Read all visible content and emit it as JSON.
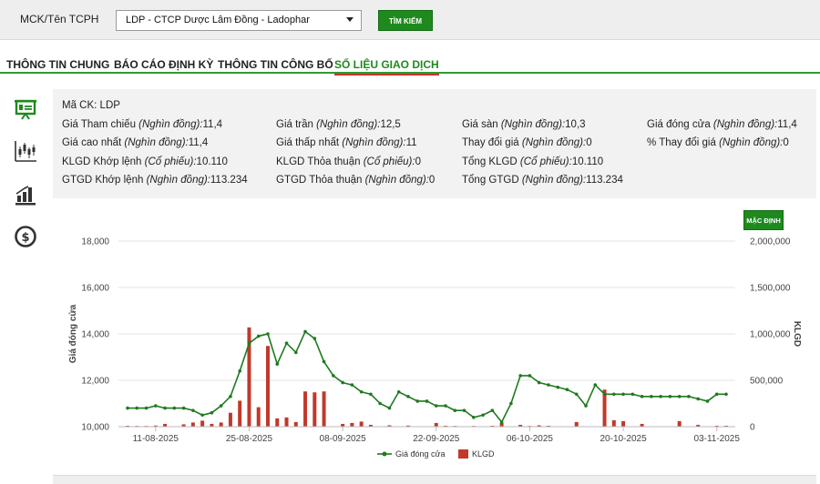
{
  "header": {
    "mck_label": "MCK/Tên TCPH",
    "select_value": "LDP - CTCP Dược Lâm Đồng - Ladophar",
    "search_button": "TÌM KIẾM"
  },
  "tabs": [
    {
      "label": "THÔNG TIN CHUNG",
      "active": false
    },
    {
      "label": "BÁO CÁO ĐỊNH KỲ",
      "active": false
    },
    {
      "label": "THÔNG TIN CÔNG BỐ",
      "active": false
    },
    {
      "label": "SỐ LIỆU GIAO DỊCH",
      "active": true
    }
  ],
  "sidebar": {
    "icons": [
      "presentation-icon",
      "candlestick-icon",
      "bar-chart-icon",
      "dollar-icon"
    ]
  },
  "info": {
    "ma_ck_label": "Mã CK:",
    "ma_ck_value": "LDP",
    "rows": [
      [
        {
          "label": "Giá Tham chiếu",
          "unit": "(Nghìn đồng):",
          "value": "11,4"
        },
        {
          "label": "Giá trần",
          "unit": "(Nghìn đồng):",
          "value": "12,5"
        },
        {
          "label": "Giá sàn",
          "unit": "(Nghìn đồng):",
          "value": "10,3"
        },
        {
          "label": "Giá đóng cửa",
          "unit": "(Nghìn đồng):",
          "value": "11,4"
        }
      ],
      [
        {
          "label": "Giá cao nhất",
          "unit": "(Nghìn đồng):",
          "value": "11,4"
        },
        {
          "label": "Giá thấp nhất",
          "unit": "(Nghìn đồng):",
          "value": "11"
        },
        {
          "label": "Thay đổi giá",
          "unit": "(Nghìn đồng):",
          "value": "0"
        },
        {
          "label": "% Thay đổi giá",
          "unit": "(Nghìn đồng):",
          "value": "0"
        }
      ],
      [
        {
          "label": "KLGD Khớp lệnh",
          "unit": "(Cổ phiếu):",
          "value": "10.110"
        },
        {
          "label": "KLGD Thỏa thuận",
          "unit": "(Cổ phiếu):",
          "value": "0"
        },
        {
          "label": "Tổng KLGD",
          "unit": "(Cổ phiếu):",
          "value": "10.110"
        },
        null
      ],
      [
        {
          "label": "GTGD Khớp lệnh",
          "unit": "(Nghìn đồng):",
          "value": "113.234"
        },
        {
          "label": "GTGD Thỏa thuận",
          "unit": "(Nghìn đồng):",
          "value": "0"
        },
        {
          "label": "Tổng GTGD",
          "unit": "(Nghìn đồng):",
          "value": "113.234"
        },
        null
      ]
    ]
  },
  "chart_controls": {
    "default_button": "MẶC ĐỊNH"
  },
  "colors": {
    "accent": "#1e8a1e",
    "price_line": "#1f7a1f",
    "volume_bar": "#c0392b"
  },
  "chart_data": {
    "type": "bar+line",
    "x": [
      "06-08-2025",
      "07-08-2025",
      "08-08-2025",
      "11-08-2025",
      "12-08-2025",
      "13-08-2025",
      "14-08-2025",
      "15-08-2025",
      "18-08-2025",
      "19-08-2025",
      "20-08-2025",
      "21-08-2025",
      "22-08-2025",
      "25-08-2025",
      "26-08-2025",
      "27-08-2025",
      "28-08-2025",
      "29-08-2025",
      "01-09-2025",
      "02-09-2025",
      "03-09-2025",
      "04-09-2025",
      "05-09-2025",
      "08-09-2025",
      "09-09-2025",
      "10-09-2025",
      "11-09-2025",
      "12-09-2025",
      "15-09-2025",
      "16-09-2025",
      "17-09-2025",
      "18-09-2025",
      "19-09-2025",
      "22-09-2025",
      "23-09-2025",
      "24-09-2025",
      "25-09-2025",
      "26-09-2025",
      "29-09-2025",
      "30-09-2025",
      "01-10-2025",
      "02-10-2025",
      "03-10-2025",
      "06-10-2025",
      "07-10-2025",
      "08-10-2025",
      "09-10-2025",
      "10-10-2025",
      "13-10-2025",
      "14-10-2025",
      "15-10-2025",
      "16-10-2025",
      "17-10-2025",
      "20-10-2025",
      "21-10-2025",
      "22-10-2025",
      "23-10-2025",
      "24-10-2025",
      "27-10-2025",
      "28-10-2025",
      "29-10-2025",
      "30-10-2025",
      "31-10-2025",
      "03-11-2025",
      "04-11-2025"
    ],
    "x_ticks": [
      "11-08-2025",
      "25-08-2025",
      "08-09-2025",
      "22-09-2025",
      "06-10-2025",
      "20-10-2025",
      "03-11-2025"
    ],
    "series": [
      {
        "name": "Giá đóng cửa",
        "axis": "left",
        "type": "line",
        "values": [
          10800,
          10800,
          10800,
          10900,
          10800,
          10800,
          10800,
          10700,
          10500,
          10600,
          10900,
          11300,
          12400,
          13600,
          13900,
          14000,
          12700,
          13600,
          13200,
          14100,
          13800,
          12800,
          12200,
          11900,
          11800,
          11500,
          11400,
          11000,
          10800,
          11500,
          11300,
          11100,
          11100,
          10900,
          10900,
          10700,
          10700,
          10400,
          10500,
          10700,
          10200,
          11000,
          12200,
          12200,
          11900,
          11800,
          11700,
          11600,
          11400,
          10900,
          11800,
          11400,
          11400,
          11400,
          11400,
          11300,
          11300,
          11300,
          11300,
          11300,
          11300,
          11200,
          11100,
          11400,
          11400
        ]
      },
      {
        "name": "KLGD",
        "axis": "right",
        "type": "bar",
        "values": [
          10000,
          8000,
          8000,
          12000,
          30000,
          5000,
          25000,
          45000,
          65000,
          30000,
          45000,
          150000,
          280000,
          1070000,
          210000,
          870000,
          90000,
          100000,
          50000,
          380000,
          370000,
          380000,
          5000,
          30000,
          40000,
          55000,
          20000,
          5000,
          15000,
          5000,
          12000,
          5000,
          5000,
          40000,
          10000,
          8000,
          5000,
          8000,
          3000,
          10000,
          40000,
          5000,
          20000,
          8000,
          15000,
          10000,
          5000,
          5000,
          50000,
          5000,
          5000,
          400000,
          70000,
          60000,
          5000,
          30000,
          5000,
          5000,
          5000,
          60000,
          5000,
          20000,
          5000,
          10000,
          10110
        ]
      }
    ],
    "ylabel_left": "Giá đóng cửa",
    "ylabel_right": "KLGD",
    "ylim_left": [
      10000,
      18000
    ],
    "ylim_right": [
      0,
      2000000
    ],
    "yticks_left": [
      "10,000",
      "12,000",
      "14,000",
      "16,000",
      "18,000"
    ],
    "yticks_right": [
      "0",
      "500,000",
      "1,000,000",
      "1,500,000",
      "2,000,000"
    ],
    "legend": [
      "Giá đóng cửa",
      "KLGD"
    ],
    "legend_position": "bottom"
  }
}
